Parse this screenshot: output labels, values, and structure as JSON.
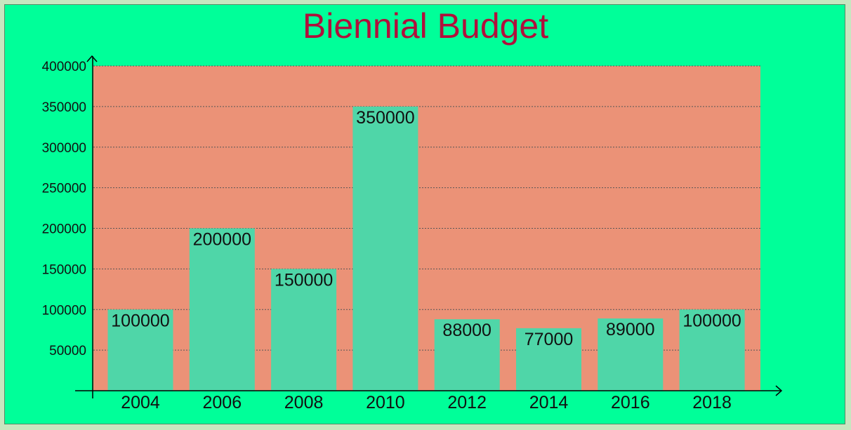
{
  "chart_data": {
    "type": "bar",
    "title": "Biennial Budget",
    "xlabel": "",
    "ylabel": "",
    "categories": [
      "2004",
      "2006",
      "2008",
      "2010",
      "2012",
      "2014",
      "2016",
      "2018"
    ],
    "values": [
      100000,
      200000,
      150000,
      350000,
      88000,
      77000,
      89000,
      100000
    ],
    "value_labels": [
      "100000",
      "200000",
      "150000",
      "350000",
      "88000",
      "77000",
      "89000",
      "100000"
    ],
    "ylim": [
      0,
      400000
    ],
    "yticks": [
      "50000",
      "100000",
      "150000",
      "200000",
      "250000",
      "300000",
      "350000",
      "400000"
    ],
    "grid": true,
    "colors": {
      "page_background": "#00ff99",
      "plot_background": "#eb9277",
      "bar": "#4fd6a8",
      "title": "#b0103c"
    }
  }
}
